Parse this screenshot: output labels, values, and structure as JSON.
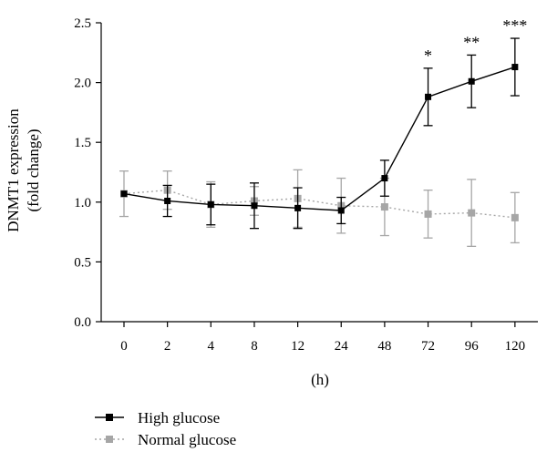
{
  "chart_data": {
    "type": "line",
    "categories": [
      "0",
      "2",
      "4",
      "8",
      "12",
      "24",
      "48",
      "72",
      "96",
      "120"
    ],
    "xlabel": "(h)",
    "ylabel_lines": [
      "DNMT1 expression",
      "(fold change)"
    ],
    "ylim": [
      0,
      2.5
    ],
    "yticks": [
      "0.0",
      "0.5",
      "1.0",
      "1.5",
      "2.0",
      "2.5"
    ],
    "grid": false,
    "legend_position": "bottom-left",
    "series": [
      {
        "name": "High glucose",
        "color": "#000000",
        "line_style": "solid",
        "marker": "square",
        "values": [
          1.07,
          1.01,
          0.98,
          0.97,
          0.95,
          0.93,
          1.2,
          1.88,
          2.01,
          2.13
        ],
        "error": [
          0.0,
          0.13,
          0.17,
          0.19,
          0.17,
          0.11,
          0.15,
          0.24,
          0.22,
          0.24
        ]
      },
      {
        "name": "Normal glucose",
        "color": "#a6a6a6",
        "line_style": "dotted",
        "marker": "square",
        "values": [
          1.07,
          1.1,
          0.98,
          1.01,
          1.03,
          0.97,
          0.96,
          0.9,
          0.91,
          0.87
        ],
        "error": [
          0.19,
          0.16,
          0.19,
          0.12,
          0.24,
          0.23,
          0.24,
          0.2,
          0.28,
          0.21
        ]
      }
    ],
    "annotations": [
      {
        "category": "72",
        "text": "*"
      },
      {
        "category": "96",
        "text": "**"
      },
      {
        "category": "120",
        "text": "***"
      }
    ]
  }
}
